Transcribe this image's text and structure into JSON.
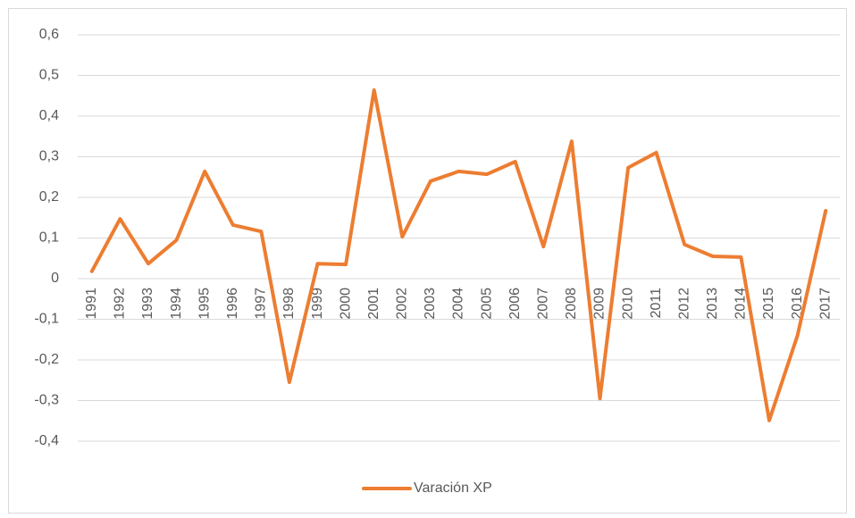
{
  "chart_data": {
    "type": "line",
    "categories": [
      "1991",
      "1992",
      "1993",
      "1994",
      "1995",
      "1996",
      "1997",
      "1998",
      "1999",
      "2000",
      "2001",
      "2002",
      "2003",
      "2004",
      "2005",
      "2006",
      "2007",
      "2008",
      "2009",
      "2010",
      "2011",
      "2012",
      "2013",
      "2014",
      "2015",
      "2016",
      "2017"
    ],
    "series": [
      {
        "name": "Varación XP",
        "color": "#ed7d31",
        "values": [
          0.018,
          0.147,
          0.037,
          0.095,
          0.264,
          0.132,
          0.116,
          -0.255,
          0.037,
          0.035,
          0.464,
          0.103,
          0.24,
          0.264,
          0.257,
          0.288,
          0.079,
          0.338,
          -0.295,
          0.273,
          0.31,
          0.084,
          0.055,
          0.053,
          -0.349,
          -0.14,
          0.167
        ]
      }
    ],
    "ylim": [
      -0.4,
      0.6
    ],
    "yticks": [
      {
        "value": -0.4,
        "label": "-0,4"
      },
      {
        "value": -0.3,
        "label": "-0,3"
      },
      {
        "value": -0.2,
        "label": "-0,2"
      },
      {
        "value": -0.1,
        "label": "-0,1"
      },
      0,
      {
        "value": 0.1,
        "label": "0,1"
      },
      {
        "value": 0.2,
        "label": "0,2"
      },
      {
        "value": 0.3,
        "label": "0,3"
      },
      {
        "value": 0.4,
        "label": "0,4"
      },
      {
        "value": 0.5,
        "label": "0,5"
      },
      {
        "value": 0.6,
        "label": "0,6"
      }
    ],
    "grid": true,
    "legend": "bottom"
  }
}
